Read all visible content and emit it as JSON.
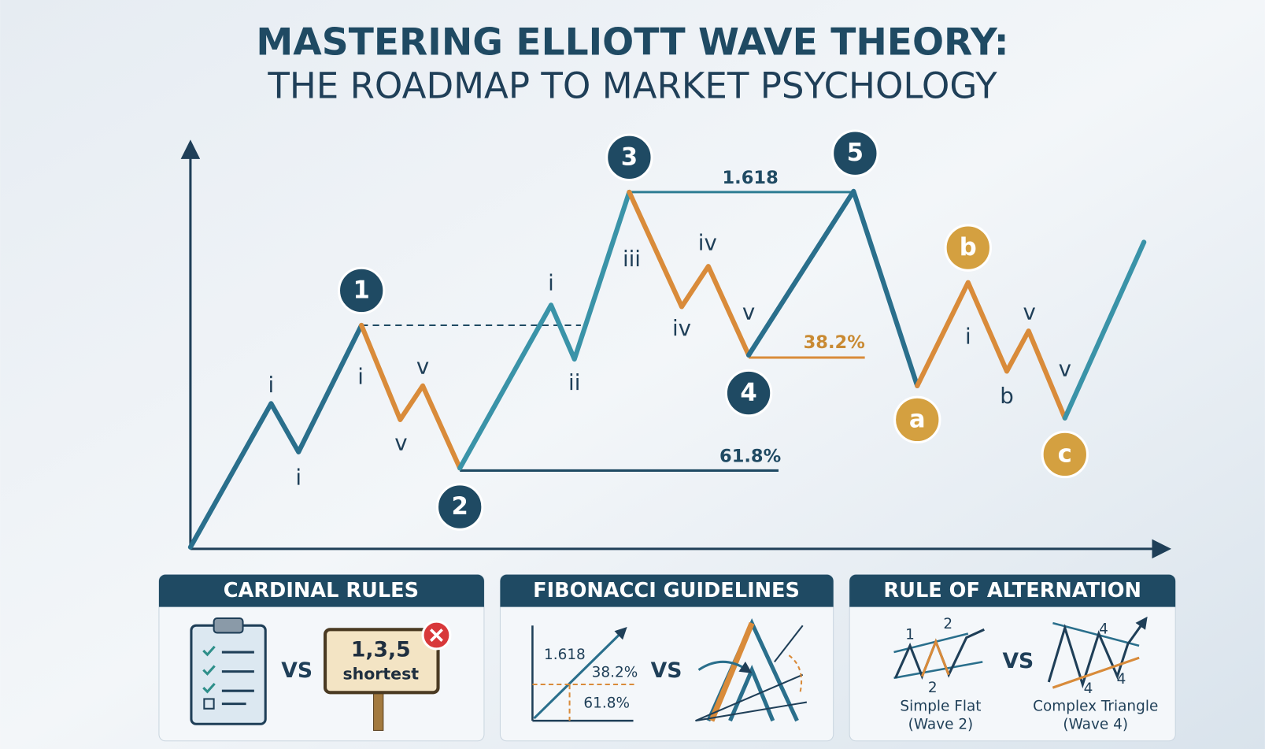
{
  "header": {
    "title": "MASTERING ELLIOTT WAVE THEORY:",
    "subtitle": "THE ROADMAP TO MARKET PSYCHOLOGY"
  },
  "waves": [
    "1",
    "2",
    "3",
    "4",
    "5",
    "a",
    "b",
    "c"
  ],
  "subwaves": [
    "i",
    "i",
    "i",
    "v",
    "v",
    "i",
    "ii",
    "iii",
    "iv",
    "iv",
    "v",
    "i",
    "v",
    "b",
    "v"
  ],
  "fib_levels": [
    "1.618",
    "61.8%",
    "38.2%"
  ],
  "panels": [
    {
      "title": "CARDINAL RULES",
      "sign": [
        "1,3,5",
        "shortest"
      ],
      "vs": "VS"
    },
    {
      "title": "FIBONACCI GUIDELINES",
      "labels": [
        "1.618",
        "38.2%",
        "61.8%"
      ],
      "vs": "VS"
    },
    {
      "title": "RULE OF ALTERNATION",
      "left_labels": [
        "1",
        "2",
        "2"
      ],
      "left_caption": [
        "Simple Flat",
        "(Wave 2)"
      ],
      "vs": "VS",
      "right_labels": [
        "4",
        "4",
        "4"
      ],
      "right_caption": [
        "Complex Triangle",
        "(Wave 4)"
      ]
    }
  ]
}
